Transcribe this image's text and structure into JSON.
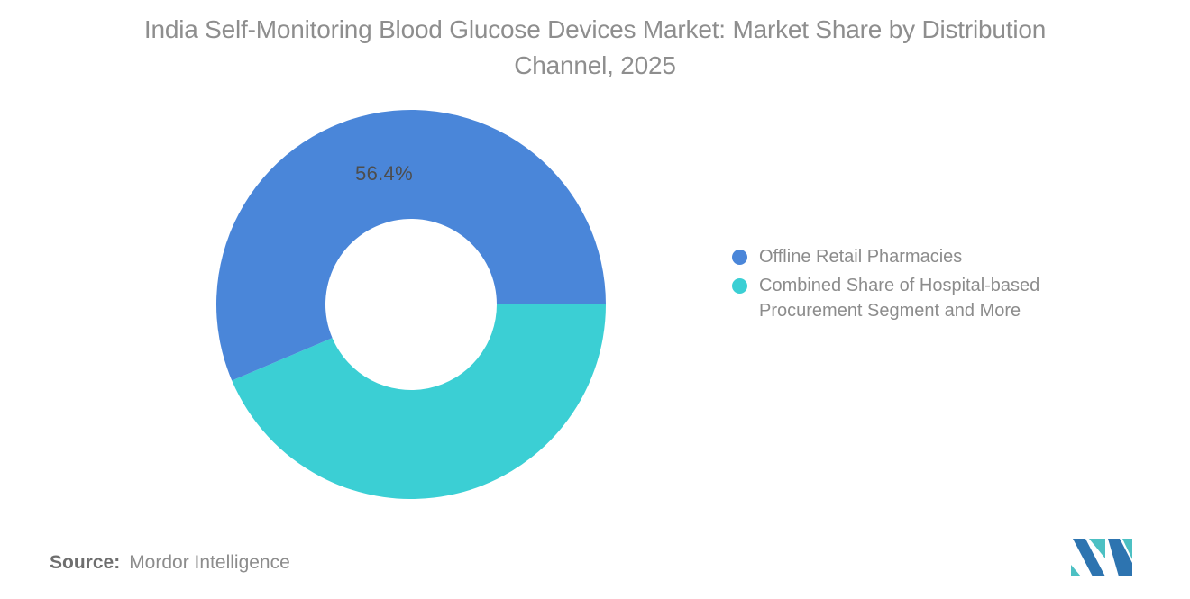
{
  "title": "India Self-Monitoring Blood Glucose Devices Market: Market Share by Distribution Channel, 2025",
  "chart_data": {
    "type": "pie",
    "donut": true,
    "title": "India Self-Monitoring Blood Glucose Devices Market: Market Share by Distribution Channel, 2025",
    "categories": [
      "Offline Retail Pharmacies",
      "Combined Share of Hospital-based Procurement Segment and More"
    ],
    "values": [
      56.4,
      43.6
    ],
    "colors": [
      "#4A86D9",
      "#3BCFD4"
    ],
    "data_labels": [
      "56.4%",
      ""
    ],
    "inner_radius_pct": 44,
    "start_boundary_deg_clockwise_from_top": 90,
    "legend_position": "right",
    "label_color": "#4d4d4d",
    "title_color": "#8e8e8e"
  },
  "legend": {
    "items": [
      {
        "label": "Offline Retail Pharmacies",
        "color": "#4A86D9"
      },
      {
        "label": "Combined Share of Hospital-based Procurement Segment and More",
        "color": "#3BCFD4"
      }
    ]
  },
  "slice_label": "56.4%",
  "source": {
    "label": "Source:",
    "value": "Mordor Intelligence"
  },
  "logo": {
    "name": "mordor-intelligence-logo",
    "blue": "#2D74B0",
    "teal": "#4CC0C3"
  }
}
